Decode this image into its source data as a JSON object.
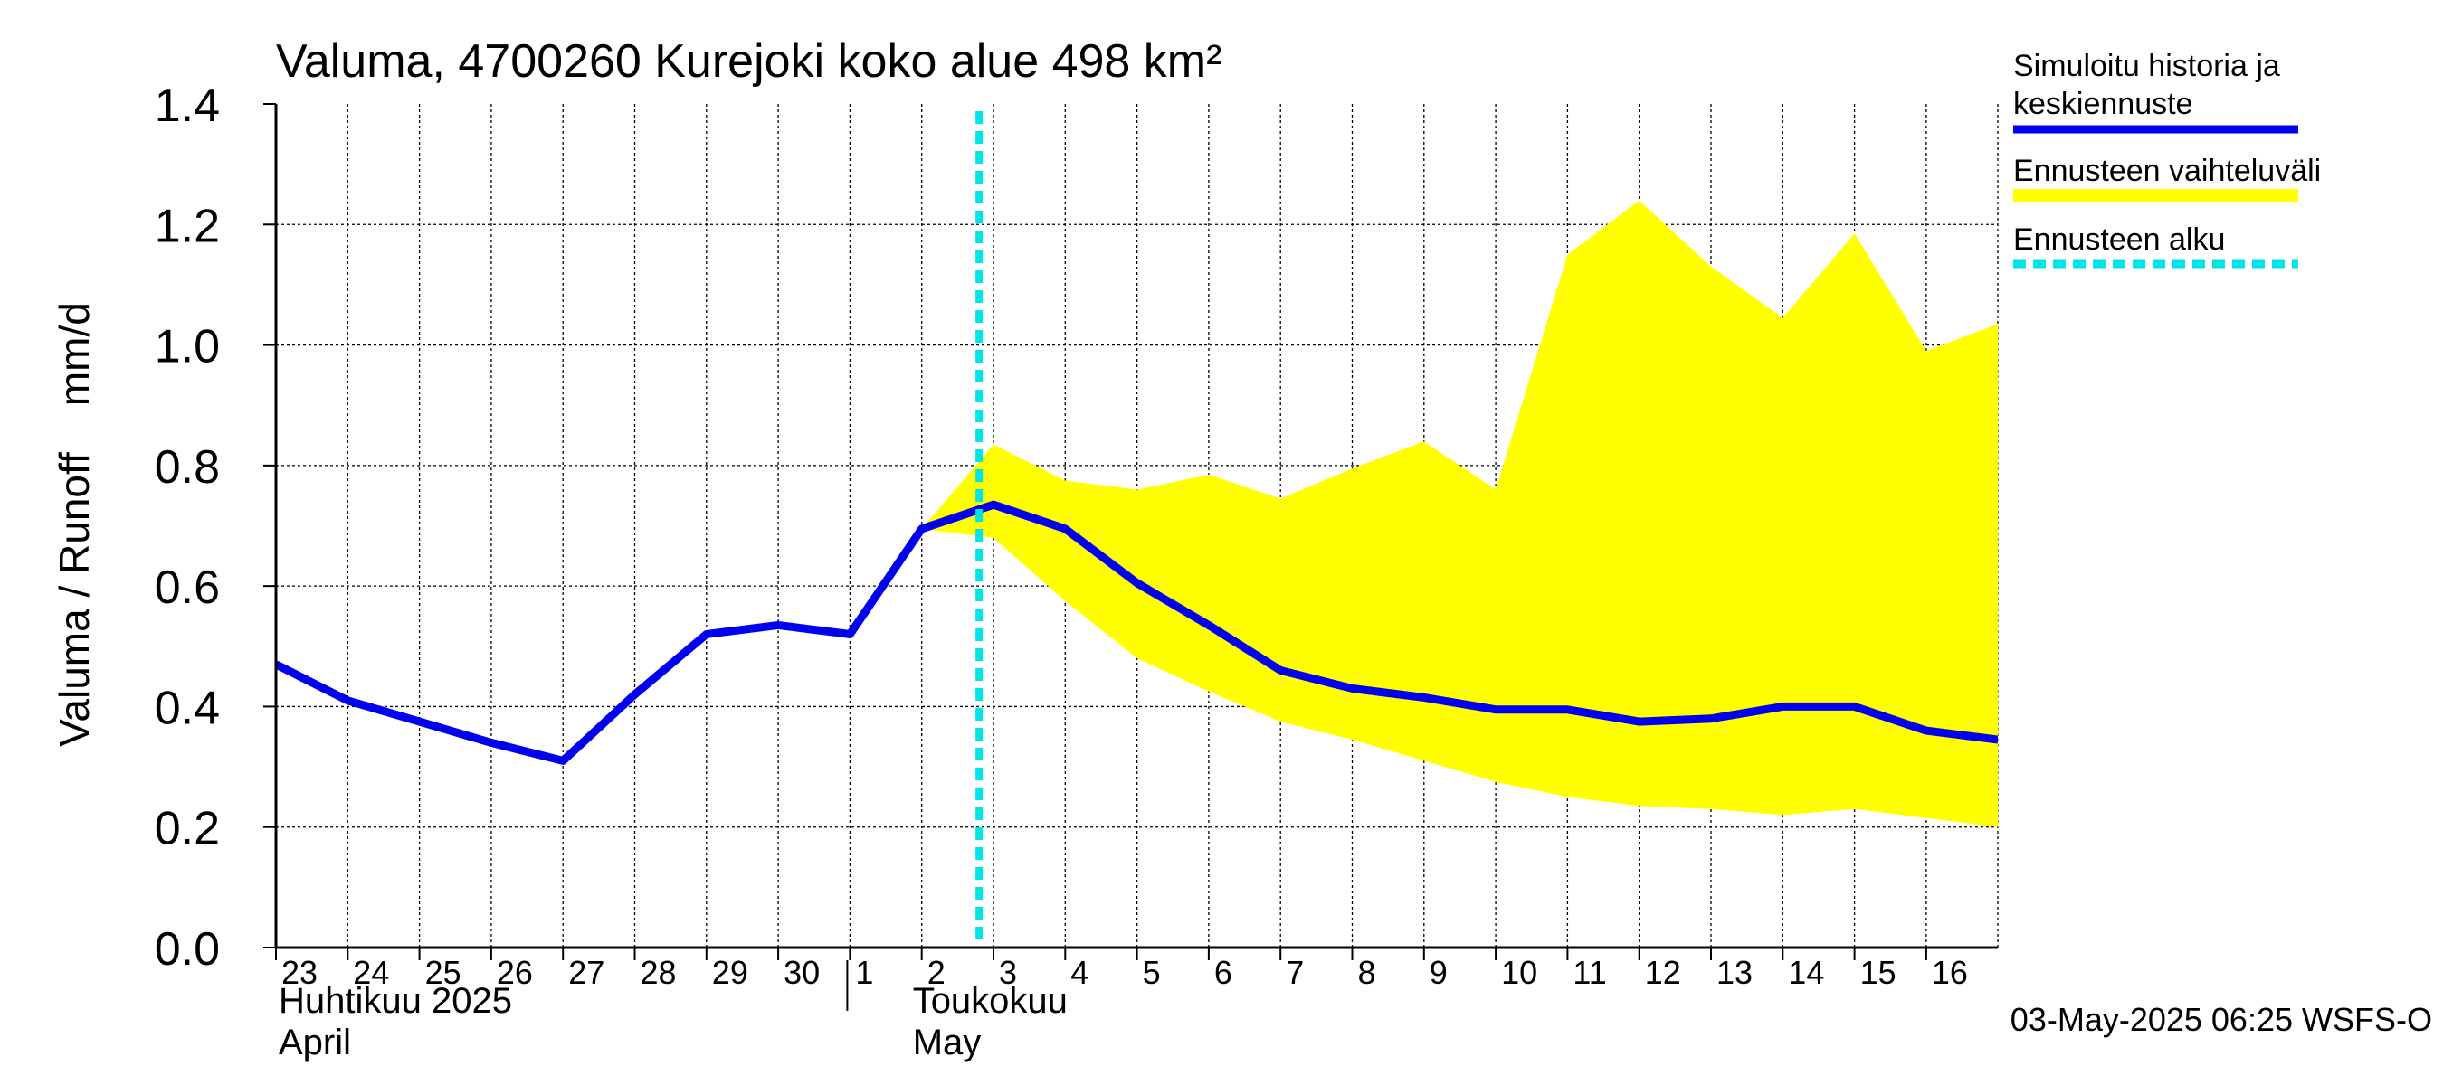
{
  "chart_data": {
    "type": "line",
    "title": "Valuma, 4700260 Kurejoki koko alue 498 km²",
    "ylabel": "Valuma / Runoff    mm/d",
    "ylim": [
      0,
      1.4
    ],
    "yticks": [
      "0.0",
      "0.2",
      "0.4",
      "0.6",
      "0.8",
      "1.0",
      "1.2",
      "1.4"
    ],
    "x": [
      "2025-04-23",
      "2025-04-24",
      "2025-04-25",
      "2025-04-26",
      "2025-04-27",
      "2025-04-28",
      "2025-04-29",
      "2025-04-30",
      "2025-05-01",
      "2025-05-02",
      "2025-05-03",
      "2025-05-04",
      "2025-05-05",
      "2025-05-06",
      "2025-05-07",
      "2025-05-08",
      "2025-05-09",
      "2025-05-10",
      "2025-05-11",
      "2025-05-12",
      "2025-05-13",
      "2025-05-14",
      "2025-05-15",
      "2025-05-16"
    ],
    "xtick_labels": [
      "23",
      "24",
      "25",
      "26",
      "27",
      "28",
      "29",
      "30",
      "1",
      "2",
      "3",
      "4",
      "5",
      "6",
      "7",
      "8",
      "9",
      "10",
      "11",
      "12",
      "13",
      "14",
      "15",
      "16"
    ],
    "month_labels": [
      {
        "line1": "Huhtikuu  2025",
        "line2": "April"
      },
      {
        "line1": "Toukokuu",
        "line2": "May"
      }
    ],
    "series": [
      {
        "name": "Simuloitu historia ja keskiennuste",
        "color": "#0000ee",
        "x": [
          "2025-04-23",
          "2025-04-24",
          "2025-04-25",
          "2025-04-26",
          "2025-04-27",
          "2025-04-28",
          "2025-04-29",
          "2025-04-30",
          "2025-05-01",
          "2025-05-02",
          "2025-05-03",
          "2025-05-04",
          "2025-05-05",
          "2025-05-06",
          "2025-05-07",
          "2025-05-08",
          "2025-05-09",
          "2025-05-10",
          "2025-05-11",
          "2025-05-12",
          "2025-05-13",
          "2025-05-14",
          "2025-05-15",
          "2025-05-16",
          "2025-05-17"
        ],
        "values": [
          0.47,
          0.41,
          0.375,
          0.34,
          0.31,
          0.42,
          0.52,
          0.535,
          0.52,
          0.695,
          0.735,
          0.695,
          0.605,
          0.535,
          0.46,
          0.43,
          0.415,
          0.395,
          0.395,
          0.375,
          0.38,
          0.4,
          0.4,
          0.36,
          0.345
        ]
      },
      {
        "name": "Ennusteen vaihteluväli",
        "color": "#ffff00",
        "x": [
          "2025-05-02",
          "2025-05-03",
          "2025-05-04",
          "2025-05-05",
          "2025-05-06",
          "2025-05-07",
          "2025-05-08",
          "2025-05-09",
          "2025-05-10",
          "2025-05-11",
          "2025-05-12",
          "2025-05-13",
          "2025-05-14",
          "2025-05-15",
          "2025-05-16",
          "2025-05-17"
        ],
        "upper": [
          0.695,
          0.835,
          0.775,
          0.76,
          0.785,
          0.745,
          0.795,
          0.84,
          0.76,
          1.15,
          1.24,
          1.13,
          1.045,
          1.185,
          0.99,
          1.035
        ],
        "lower": [
          0.695,
          0.68,
          0.575,
          0.48,
          0.425,
          0.375,
          0.345,
          0.31,
          0.275,
          0.25,
          0.235,
          0.23,
          0.22,
          0.23,
          0.215,
          0.2
        ]
      }
    ],
    "forecast_start": {
      "name": "Ennusteen alku",
      "x": "2025-05-03",
      "color": "#00e5e5"
    },
    "legend_position": "right",
    "grid": true,
    "timestamp": "03-May-2025 06:25 WSFS-O"
  }
}
